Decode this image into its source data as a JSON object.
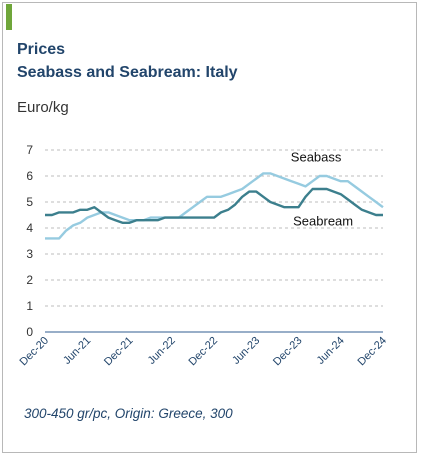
{
  "title": "Prices",
  "subtitle": "Seabass and Seabream: Italy",
  "unit_label": "Euro/kg",
  "footnote": "300-450 gr/pc, Origin: Greece, 300",
  "colors": {
    "seabass": "#96cbe0",
    "seabream": "#3c7f8d",
    "accent": "#6fa63a",
    "title": "#22456b"
  },
  "chart_data": {
    "type": "line",
    "title": "Prices",
    "subtitle": "Seabass and Seabream: Italy",
    "ylabel": "Euro/kg",
    "ylim": [
      0,
      7
    ],
    "yticks": [
      0,
      1,
      2,
      3,
      4,
      5,
      6,
      7
    ],
    "grid": true,
    "x_tick_labels": [
      "Dec-20",
      "Jun-21",
      "Dec-21",
      "Jun-22",
      "Dec-22",
      "Jun-23",
      "Dec-23",
      "Jun-24",
      "Dec-24"
    ],
    "x_tick_months": [
      0,
      6,
      12,
      18,
      24,
      30,
      36,
      42,
      48
    ],
    "x": [
      0,
      1,
      2,
      3,
      4,
      5,
      6,
      7,
      8,
      9,
      10,
      11,
      12,
      13,
      14,
      15,
      16,
      17,
      18,
      19,
      20,
      21,
      22,
      23,
      24,
      25,
      26,
      27,
      28,
      29,
      30,
      31,
      32,
      33,
      34,
      35,
      36,
      37,
      38,
      39,
      40,
      41,
      42,
      43,
      44,
      45,
      46,
      47,
      48
    ],
    "series": [
      {
        "name": "Seabass",
        "values": [
          3.6,
          3.6,
          3.6,
          3.9,
          4.1,
          4.2,
          4.4,
          4.5,
          4.6,
          4.6,
          4.5,
          4.4,
          4.3,
          4.3,
          4.3,
          4.4,
          4.4,
          4.4,
          4.4,
          4.4,
          4.6,
          4.8,
          5.0,
          5.2,
          5.2,
          5.2,
          5.3,
          5.4,
          5.5,
          5.7,
          5.9,
          6.1,
          6.1,
          6.0,
          5.9,
          5.8,
          5.7,
          5.6,
          5.8,
          6.0,
          6.0,
          5.9,
          5.8,
          5.8,
          5.6,
          5.4,
          5.2,
          5.0,
          4.8
        ]
      },
      {
        "name": "Seabream",
        "values": [
          4.5,
          4.5,
          4.6,
          4.6,
          4.6,
          4.7,
          4.7,
          4.8,
          4.6,
          4.4,
          4.3,
          4.2,
          4.2,
          4.3,
          4.3,
          4.3,
          4.3,
          4.4,
          4.4,
          4.4,
          4.4,
          4.4,
          4.4,
          4.4,
          4.4,
          4.6,
          4.7,
          4.9,
          5.2,
          5.4,
          5.4,
          5.2,
          5.0,
          4.9,
          4.8,
          4.8,
          4.8,
          5.2,
          5.5,
          5.5,
          5.5,
          5.4,
          5.3,
          5.1,
          4.9,
          4.7,
          4.6,
          4.5,
          4.5
        ]
      }
    ],
    "annotations": [
      {
        "text": "Seabass",
        "series": "Seabass"
      },
      {
        "text": "Seabream",
        "series": "Seabream"
      }
    ]
  }
}
